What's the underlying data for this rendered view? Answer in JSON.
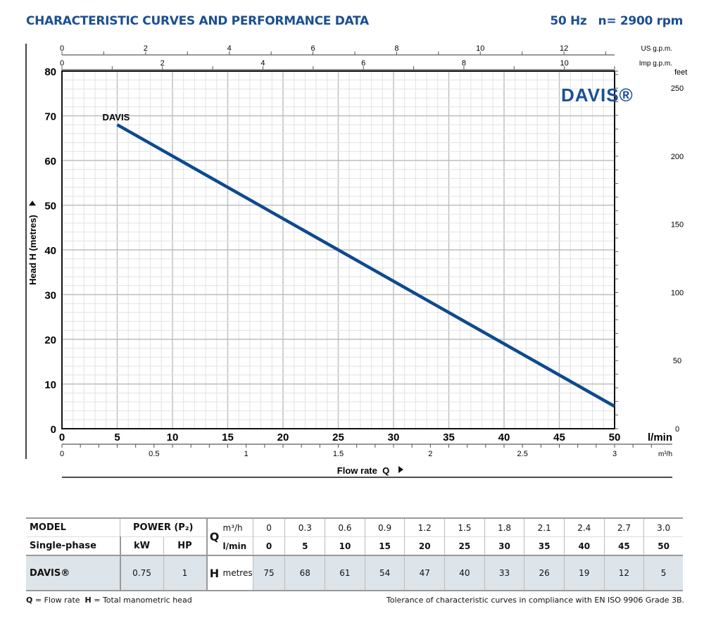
{
  "header": {
    "title": "CHARACTERISTIC CURVES AND PERFORMANCE DATA",
    "frequency": "50 Hz",
    "speed": "n= 2900 rpm"
  },
  "colors": {
    "accent": "#1b4f93",
    "curve": "#0d4a8f",
    "grid": "#d6d6d6",
    "row_bg": "#dde5ea"
  },
  "chart_data": {
    "type": "line",
    "title": "",
    "xlabel": "Flow rate  Q",
    "ylabel": "Head H  (metres)",
    "x_unit": "l/min",
    "xlim": [
      0,
      50
    ],
    "ylim": [
      0,
      80
    ],
    "x_ticks": [
      0,
      5,
      10,
      15,
      20,
      25,
      30,
      35,
      40,
      45,
      50
    ],
    "y_ticks": [
      0,
      10,
      20,
      30,
      40,
      50,
      60,
      70,
      80
    ],
    "grid": true,
    "series": [
      {
        "name": "DAVIS",
        "x": [
          5,
          50
        ],
        "y": [
          68,
          5
        ]
      }
    ],
    "secondary_axes": {
      "m3h": {
        "unit": "m³/h",
        "ticks": [
          "0",
          "0.5",
          "1",
          "1.5",
          "2",
          "2.5",
          "3"
        ],
        "range": [
          0,
          3
        ]
      },
      "us_gpm": {
        "unit": "US g.p.m.",
        "ticks": [
          "0",
          "2",
          "4",
          "6",
          "8",
          "10",
          "12"
        ],
        "range": [
          0,
          13.21
        ]
      },
      "imp_gpm": {
        "unit": "Imp g.p.m.",
        "ticks": [
          "0",
          "2",
          "4",
          "6",
          "8",
          "10"
        ],
        "range": [
          0,
          11
        ]
      },
      "feet": {
        "unit": "feet",
        "ticks": [
          "0",
          "50",
          "100",
          "150",
          "200",
          "250"
        ],
        "range": [
          0,
          262.5
        ]
      }
    },
    "brand_logo": "DAVIS®"
  },
  "table": {
    "model_label": "MODEL",
    "phase_label": "Single-phase",
    "power_label": "POWER (P₂)",
    "kw_label": "kW",
    "hp_label": "HP",
    "q_label": "Q",
    "q_unit_m3h": "m³/h",
    "q_unit_lmin": "l/min",
    "h_label": "H",
    "h_unit": "metres",
    "q_m3h": [
      "0",
      "0.3",
      "0.6",
      "0.9",
      "1.2",
      "1.5",
      "1.8",
      "2.1",
      "2.4",
      "2.7",
      "3.0"
    ],
    "q_lmin": [
      "0",
      "5",
      "10",
      "15",
      "20",
      "25",
      "30",
      "35",
      "40",
      "45",
      "50"
    ],
    "rows": [
      {
        "model": "DAVIS®",
        "kw": "0.75",
        "hp": "1",
        "head": [
          "75",
          "68",
          "61",
          "54",
          "47",
          "40",
          "33",
          "26",
          "19",
          "12",
          "5"
        ]
      }
    ]
  },
  "notes": {
    "legend_q": "Q",
    "legend_q_text": " = Flow rate  ",
    "legend_h": "H",
    "legend_h_text": " = Total manometric head",
    "tolerance": "Tolerance of characteristic curves in compliance with EN ISO 9906 Grade 3B."
  }
}
